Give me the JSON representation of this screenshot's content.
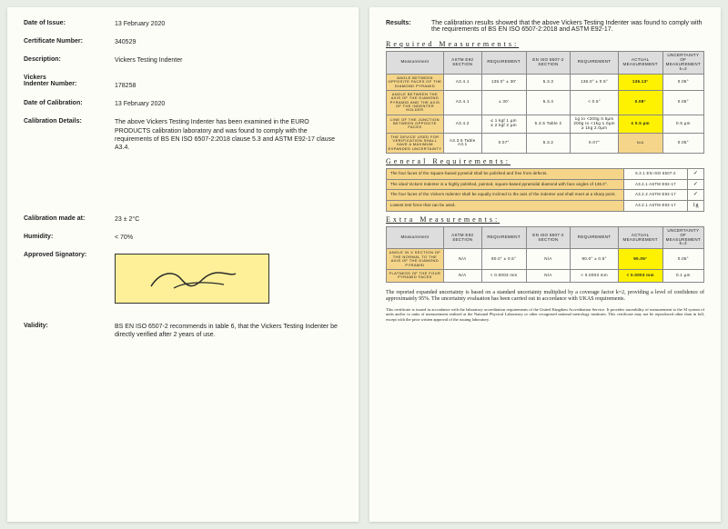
{
  "left": {
    "date_of_issue": {
      "label": "Date of Issue:",
      "value": "13 February 2020"
    },
    "cert_no": {
      "label": "Certificate Number:",
      "value": "340529"
    },
    "description": {
      "label": "Description:",
      "value": "Vickers Testing Indenter"
    },
    "indenter_no": {
      "label": "Vickers\nIndenter Number:",
      "value": "178258"
    },
    "date_cal": {
      "label": "Date of Calibration:",
      "value": "13 February 2020"
    },
    "cal_details": {
      "label": "Calibration Details:",
      "value": "The above Vickers Testing Indenter has been examined in the EURO PRODUCTS calibration laboratory and was found to comply with the requirements of BS EN ISO 6507-2:2018 clause 5.3 and ASTM E92-17 clause A3.4."
    },
    "cal_at": {
      "label": "Calibration made at:",
      "value": "23 ± 2°C"
    },
    "humidity": {
      "label": "Humidity:",
      "value": "< 70%"
    },
    "signatory": {
      "label": "Approved Signatory:"
    },
    "validity": {
      "label": "Validity:",
      "value": "BS EN ISO 6507-2 recommends in table 6, that the Vickers Testing Indenter be directly verified after 2 years of use."
    }
  },
  "right": {
    "results_label": "Results:",
    "results_text": "The calibration results showed that the above Vickers Testing Indenter was found to comply with the requirements of BS EN ISO 6507-2:2018 and ASTM E92-17.",
    "hdr_required": "Required Measurements:",
    "hdr_general": "General Requirements:",
    "hdr_extra": "Extra Measurements:",
    "columns": {
      "measurement": "Measurement",
      "astm_sec": "ASTM E92 SECTION",
      "req1": "REQUIREMENT",
      "eniso_sec": "EN ISO 6507-2 SECTION",
      "req2": "REQUIREMENT",
      "actual": "ACTUAL MEASUREMENT",
      "uncert": "UNCERTAINTY OF MEASUREMENT k=2"
    },
    "required_rows": [
      {
        "hdr": "ANGLE BETWEEN OPPOSITE FACES OF THE DIAMOND PYRAMID",
        "c2": "A3.4.1",
        "c3": "136.0° ± 30'",
        "c4": "5.3.3",
        "c5": "136.0° ± 0.5°",
        "c6": "136.13°",
        "c7": "0.05°"
      },
      {
        "hdr": "ANGLE BETWEEN THE AXIS OF THE DIAMOND PYRAMID AND THE AXIS OF THE INDENTER HOLDER",
        "c2": "A3.4.1",
        "c3": "± 30'",
        "c4": "5.3.4",
        "c5": "< 0.5°",
        "c6": "0.08°",
        "c7": "0.05°"
      },
      {
        "hdr": "LINE OF THE JUNCTION BETWEEN OPPOSITE FACES",
        "c2": "A3.4.2",
        "c3": "≤ 1 kgf 1 µm\n≤ 2 kgf 2 µm",
        "c4": "5.3.5 Table 2",
        "c5": "1g to <200g 0.5µm\n200g to <1kg 1.0µm\n≥ 1kg 2.0µm",
        "c6": "≤ 0.5 µm",
        "c7": "0.5 µm"
      },
      {
        "hdr": "THE DEVICE USED FOR VERIFICATION SHALL HAVE A MAXIMUM EXPANDED UNCERTAINTY",
        "c2": "A3.3.5 Table A3.1",
        "c3": "0.07°",
        "c4": "5.3.2",
        "c5": "0.07°",
        "c6": "N/A",
        "c7": "0.05°"
      }
    ],
    "general_rows": [
      {
        "desc": "The four faces of the Square-based pyramid shall be polished and free from defects.",
        "std": "5.3.1 EN ISO 6507-2",
        "chk": "✓"
      },
      {
        "desc": "The ideal Vickers Indenter is a highly polished, pointed, square-based pyramidal diamond with face angles of 136.0°.",
        "std": "A3.2.1 ASTM E92-17",
        "chk": "✓"
      },
      {
        "desc": "The four faces of the Vickers Indenter shall be equally inclined to the axis of the indenter and shall meet at a sharp point.",
        "std": "A3.2.2 ASTM E92-17",
        "chk": "✓"
      },
      {
        "desc": "Lowest test force that can be used.",
        "std": "A3.2.1 ASTM E92-17",
        "chk": "1g"
      }
    ],
    "extra_rows": [
      {
        "hdr": "ANGLE IN X SECTION OF THE NORMAL TO THE AXIS OF THE DIAMOND PYRAMID",
        "c2": "N/A",
        "c3": "90.0° ± 0.5°",
        "c4": "N/A",
        "c5": "90.0° ± 0.5°",
        "c6": "90.05°",
        "c7": "0.05°"
      },
      {
        "hdr": "FLATNESS OF THE FOUR PYRAMID FACES",
        "c2": "N/A",
        "c3": "< 0.0003 mm",
        "c4": "N/A",
        "c5": "< 0.0003 mm",
        "c6": "< 0.0003 mm",
        "c7": "0.1 µm"
      }
    ],
    "footnote1": "The reported expanded uncertainty is based on a standard uncertainty multiplied by a coverage factor k=2, providing a level of confidence of approximately 95%. The uncertainty evaluation has been carried out in accordance with UKAS requirements.",
    "footnote2": "This certificate is issued in accordance with the laboratory accreditation requirements of the United Kingdom Accreditation Service. It provides traceability of measurement to the SI system of units and/or to units of measurement realised at the National Physical Laboratory or other recognised national metrology institutes. This certificate may not be reproduced other than in full, except with the prior written approval of the issuing laboratory."
  },
  "colors": {
    "page_bg": "#fdfdf8",
    "row_header_bg": "#f5d589",
    "highlight_bg": "#fff200",
    "th_bg": "#dddddd",
    "border": "#888888"
  }
}
